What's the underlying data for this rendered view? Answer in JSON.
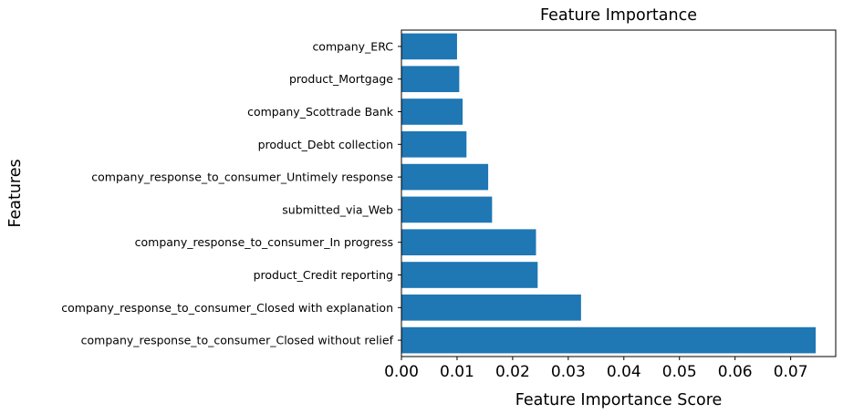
{
  "chart_data": {
    "type": "bar",
    "orientation": "horizontal",
    "title": "Feature Importance",
    "xlabel": "Feature Importance Score",
    "ylabel": "Features",
    "xlim": [
      0,
      0.0781
    ],
    "xticks": [
      "0.00",
      "0.01",
      "0.02",
      "0.03",
      "0.04",
      "0.05",
      "0.06",
      "0.07"
    ],
    "categories": [
      "company_response_to_consumer_Closed without relief",
      "company_response_to_consumer_Closed with explanation",
      "product_Credit reporting",
      "company_response_to_consumer_In progress",
      "submitted_via_Web",
      "company_response_to_consumer_Untimely response",
      "product_Debt collection",
      "company_Scottrade Bank",
      "product_Mortgage",
      "company_ERC"
    ],
    "values": [
      0.0745,
      0.0323,
      0.0245,
      0.0242,
      0.0163,
      0.0156,
      0.0117,
      0.011,
      0.0104,
      0.01
    ],
    "bar_color": "#1f77b4",
    "grid": false,
    "legend": "none"
  }
}
